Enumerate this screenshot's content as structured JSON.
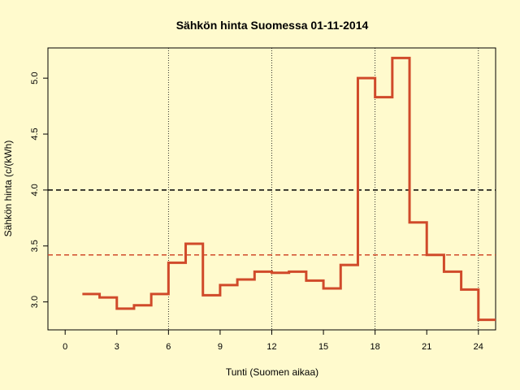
{
  "chart_data": {
    "type": "line",
    "step": true,
    "title": "Sähkön hinta Suomessa 01-11-2014",
    "xlabel": "Tunti (Suomen aikaa)",
    "ylabel": "Sähkön hinta (c/(kWh)",
    "xlim": [
      -1,
      25
    ],
    "ylim": [
      2.75,
      5.27
    ],
    "x_ticks": [
      0,
      3,
      6,
      9,
      12,
      15,
      18,
      21,
      24
    ],
    "x_tick_labels": [
      "0",
      "3",
      "6",
      "9",
      "12",
      "15",
      "18",
      "21",
      "24"
    ],
    "y_ticks": [
      3.0,
      3.5,
      4.0,
      4.5,
      5.0
    ],
    "y_tick_labels": [
      "3.0",
      "3.5",
      "4.0",
      "4.5",
      "5.0"
    ],
    "vertical_gridlines_at": [
      6,
      12,
      18,
      24
    ],
    "series": [
      {
        "color": "#d04a2a",
        "x": [
          1,
          2,
          3,
          4,
          5,
          6,
          7,
          8,
          9,
          10,
          11,
          12,
          13,
          14,
          15,
          16,
          17,
          18,
          19,
          20,
          21,
          22,
          23,
          24
        ],
        "values": [
          3.07,
          3.04,
          2.94,
          2.97,
          3.07,
          3.35,
          3.52,
          3.06,
          3.15,
          3.2,
          3.27,
          3.26,
          3.27,
          3.19,
          3.12,
          3.33,
          5.0,
          4.83,
          5.18,
          3.71,
          3.42,
          3.27,
          3.11,
          2.84
        ]
      }
    ],
    "reference_lines": [
      {
        "y": 4.0,
        "color": "#000000",
        "style": "dashed"
      },
      {
        "y": 3.42,
        "color": "#d04a2a",
        "style": "dashed"
      }
    ]
  }
}
